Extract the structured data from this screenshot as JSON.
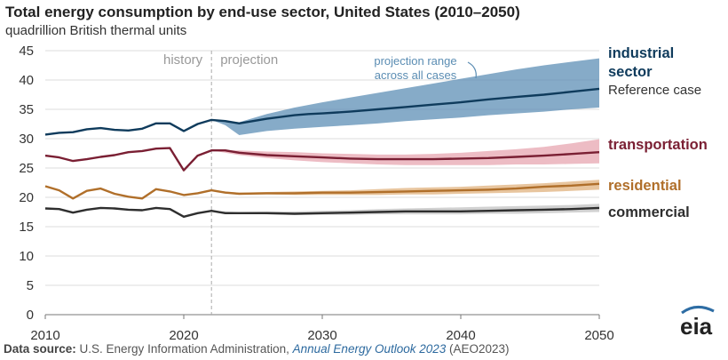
{
  "chart_data": {
    "type": "line",
    "title": "Total energy consumption by end-use sector, United States (2010–2050)",
    "subtitle": "quadrillion British thermal units",
    "xlabel": "",
    "ylabel": "quadrillion British thermal units",
    "xlim": [
      2010,
      2050
    ],
    "ylim": [
      0,
      45
    ],
    "x_ticks": [
      "2010",
      "2020",
      "2030",
      "2040",
      "2050"
    ],
    "y_ticks": [
      "0",
      "5",
      "10",
      "15",
      "20",
      "25",
      "30",
      "35",
      "40",
      "45"
    ],
    "divider_year": 2022,
    "history_label": "history",
    "projection_label": "projection",
    "range_annotation": [
      "projection range",
      "across all cases"
    ],
    "series": [
      {
        "name": "industrial sector",
        "label_lines": [
          "industrial",
          "sector"
        ],
        "sublabel": "Reference case",
        "color": "#0f3b5c",
        "band_color": "#5d8fb5",
        "points": [
          [
            2010,
            30.7
          ],
          [
            2011,
            31.0
          ],
          [
            2012,
            31.1
          ],
          [
            2013,
            31.6
          ],
          [
            2014,
            31.8
          ],
          [
            2015,
            31.5
          ],
          [
            2016,
            31.4
          ],
          [
            2017,
            31.7
          ],
          [
            2018,
            32.6
          ],
          [
            2019,
            32.6
          ],
          [
            2020,
            31.3
          ],
          [
            2021,
            32.5
          ],
          [
            2022,
            33.2
          ],
          [
            2023,
            33.0
          ],
          [
            2024,
            32.6
          ],
          [
            2025,
            33.0
          ],
          [
            2026,
            33.4
          ],
          [
            2027,
            33.7
          ],
          [
            2028,
            34.0
          ],
          [
            2029,
            34.2
          ],
          [
            2030,
            34.3
          ],
          [
            2032,
            34.6
          ],
          [
            2034,
            35.0
          ],
          [
            2036,
            35.4
          ],
          [
            2038,
            35.8
          ],
          [
            2040,
            36.2
          ],
          [
            2042,
            36.7
          ],
          [
            2044,
            37.1
          ],
          [
            2046,
            37.5
          ],
          [
            2048,
            38.0
          ],
          [
            2050,
            38.5
          ]
        ],
        "range_upper": [
          [
            2022,
            33.2
          ],
          [
            2023,
            33.0
          ],
          [
            2024,
            32.8
          ],
          [
            2026,
            34.2
          ],
          [
            2028,
            35.3
          ],
          [
            2030,
            36.2
          ],
          [
            2032,
            37.0
          ],
          [
            2034,
            37.8
          ],
          [
            2036,
            38.6
          ],
          [
            2038,
            39.4
          ],
          [
            2040,
            40.2
          ],
          [
            2042,
            41.0
          ],
          [
            2044,
            41.8
          ],
          [
            2046,
            42.5
          ],
          [
            2048,
            43.1
          ],
          [
            2050,
            43.7
          ]
        ],
        "range_lower": [
          [
            2022,
            33.2
          ],
          [
            2023,
            32.3
          ],
          [
            2024,
            30.6
          ],
          [
            2026,
            31.3
          ],
          [
            2028,
            31.7
          ],
          [
            2030,
            32.0
          ],
          [
            2032,
            32.3
          ],
          [
            2034,
            32.6
          ],
          [
            2036,
            33.0
          ],
          [
            2038,
            33.3
          ],
          [
            2040,
            33.6
          ],
          [
            2042,
            34.0
          ],
          [
            2044,
            34.3
          ],
          [
            2046,
            34.6
          ],
          [
            2048,
            35.0
          ],
          [
            2050,
            35.3
          ]
        ]
      },
      {
        "name": "transportation",
        "label_lines": [
          "transportation"
        ],
        "sublabel": "",
        "color": "#7a1f33",
        "band_color": "#e7a6b0",
        "points": [
          [
            2010,
            27.1
          ],
          [
            2011,
            26.8
          ],
          [
            2012,
            26.2
          ],
          [
            2013,
            26.5
          ],
          [
            2014,
            26.9
          ],
          [
            2015,
            27.2
          ],
          [
            2016,
            27.7
          ],
          [
            2017,
            27.9
          ],
          [
            2018,
            28.3
          ],
          [
            2019,
            28.4
          ],
          [
            2020,
            24.6
          ],
          [
            2021,
            27.1
          ],
          [
            2022,
            28.0
          ],
          [
            2023,
            28.0
          ],
          [
            2024,
            27.6
          ],
          [
            2026,
            27.2
          ],
          [
            2028,
            27.0
          ],
          [
            2030,
            26.8
          ],
          [
            2032,
            26.6
          ],
          [
            2034,
            26.5
          ],
          [
            2036,
            26.5
          ],
          [
            2038,
            26.5
          ],
          [
            2040,
            26.6
          ],
          [
            2042,
            26.7
          ],
          [
            2044,
            26.9
          ],
          [
            2046,
            27.1
          ],
          [
            2048,
            27.4
          ],
          [
            2050,
            27.7
          ]
        ],
        "range_upper": [
          [
            2022,
            28.0
          ],
          [
            2024,
            28.0
          ],
          [
            2026,
            27.8
          ],
          [
            2028,
            27.7
          ],
          [
            2030,
            27.5
          ],
          [
            2032,
            27.4
          ],
          [
            2034,
            27.3
          ],
          [
            2036,
            27.3
          ],
          [
            2038,
            27.4
          ],
          [
            2040,
            27.6
          ],
          [
            2042,
            27.9
          ],
          [
            2044,
            28.2
          ],
          [
            2046,
            28.6
          ],
          [
            2048,
            29.2
          ],
          [
            2050,
            29.9
          ]
        ],
        "range_lower": [
          [
            2022,
            28.0
          ],
          [
            2024,
            27.2
          ],
          [
            2026,
            26.7
          ],
          [
            2028,
            26.3
          ],
          [
            2030,
            26.0
          ],
          [
            2032,
            25.8
          ],
          [
            2034,
            25.6
          ],
          [
            2036,
            25.5
          ],
          [
            2038,
            25.5
          ],
          [
            2040,
            25.5
          ],
          [
            2042,
            25.5
          ],
          [
            2044,
            25.6
          ],
          [
            2046,
            25.6
          ],
          [
            2048,
            25.7
          ],
          [
            2050,
            25.8
          ]
        ]
      },
      {
        "name": "residential",
        "label_lines": [
          "residential"
        ],
        "sublabel": "",
        "color": "#b06f2a",
        "band_color": "#e0b27e",
        "points": [
          [
            2010,
            21.9
          ],
          [
            2011,
            21.2
          ],
          [
            2012,
            19.8
          ],
          [
            2013,
            21.1
          ],
          [
            2014,
            21.5
          ],
          [
            2015,
            20.6
          ],
          [
            2016,
            20.1
          ],
          [
            2017,
            19.8
          ],
          [
            2018,
            21.4
          ],
          [
            2019,
            21.0
          ],
          [
            2020,
            20.4
          ],
          [
            2021,
            20.7
          ],
          [
            2022,
            21.2
          ],
          [
            2023,
            20.8
          ],
          [
            2024,
            20.6
          ],
          [
            2026,
            20.7
          ],
          [
            2028,
            20.7
          ],
          [
            2030,
            20.8
          ],
          [
            2032,
            20.8
          ],
          [
            2034,
            20.9
          ],
          [
            2036,
            21.0
          ],
          [
            2038,
            21.1
          ],
          [
            2040,
            21.2
          ],
          [
            2042,
            21.3
          ],
          [
            2044,
            21.5
          ],
          [
            2046,
            21.8
          ],
          [
            2048,
            22.0
          ],
          [
            2050,
            22.3
          ]
        ],
        "range_upper": [
          [
            2022,
            21.2
          ],
          [
            2024,
            20.8
          ],
          [
            2026,
            20.9
          ],
          [
            2028,
            21.0
          ],
          [
            2030,
            21.1
          ],
          [
            2032,
            21.2
          ],
          [
            2034,
            21.4
          ],
          [
            2036,
            21.6
          ],
          [
            2038,
            21.7
          ],
          [
            2040,
            21.8
          ],
          [
            2042,
            22.0
          ],
          [
            2044,
            22.2
          ],
          [
            2046,
            22.4
          ],
          [
            2048,
            22.7
          ],
          [
            2050,
            23.0
          ]
        ],
        "range_lower": [
          [
            2022,
            21.2
          ],
          [
            2024,
            20.5
          ],
          [
            2026,
            20.5
          ],
          [
            2028,
            20.4
          ],
          [
            2030,
            20.4
          ],
          [
            2032,
            20.4
          ],
          [
            2034,
            20.4
          ],
          [
            2036,
            20.5
          ],
          [
            2038,
            20.5
          ],
          [
            2040,
            20.6
          ],
          [
            2042,
            20.7
          ],
          [
            2044,
            20.8
          ],
          [
            2046,
            20.9
          ],
          [
            2048,
            21.1
          ],
          [
            2050,
            21.3
          ]
        ]
      },
      {
        "name": "commercial",
        "label_lines": [
          "commercial"
        ],
        "sublabel": "",
        "color": "#2e2e2e",
        "band_color": "#c2c2c2",
        "points": [
          [
            2010,
            18.1
          ],
          [
            2011,
            18.0
          ],
          [
            2012,
            17.4
          ],
          [
            2013,
            17.9
          ],
          [
            2014,
            18.2
          ],
          [
            2015,
            18.1
          ],
          [
            2016,
            17.9
          ],
          [
            2017,
            17.8
          ],
          [
            2018,
            18.2
          ],
          [
            2019,
            18.0
          ],
          [
            2020,
            16.7
          ],
          [
            2021,
            17.3
          ],
          [
            2022,
            17.7
          ],
          [
            2023,
            17.3
          ],
          [
            2024,
            17.3
          ],
          [
            2026,
            17.3
          ],
          [
            2028,
            17.2
          ],
          [
            2030,
            17.3
          ],
          [
            2032,
            17.4
          ],
          [
            2034,
            17.5
          ],
          [
            2036,
            17.6
          ],
          [
            2038,
            17.6
          ],
          [
            2040,
            17.6
          ],
          [
            2042,
            17.7
          ],
          [
            2044,
            17.8
          ],
          [
            2046,
            17.9
          ],
          [
            2048,
            18.0
          ],
          [
            2050,
            18.2
          ]
        ],
        "range_upper": [
          [
            2022,
            17.7
          ],
          [
            2024,
            17.5
          ],
          [
            2026,
            17.6
          ],
          [
            2028,
            17.6
          ],
          [
            2030,
            17.7
          ],
          [
            2032,
            17.8
          ],
          [
            2034,
            18.0
          ],
          [
            2036,
            18.1
          ],
          [
            2038,
            18.2
          ],
          [
            2040,
            18.3
          ],
          [
            2042,
            18.4
          ],
          [
            2044,
            18.5
          ],
          [
            2046,
            18.6
          ],
          [
            2048,
            18.7
          ],
          [
            2050,
            18.9
          ]
        ],
        "range_lower": [
          [
            2022,
            17.7
          ],
          [
            2024,
            17.2
          ],
          [
            2026,
            17.1
          ],
          [
            2028,
            17.0
          ],
          [
            2030,
            17.0
          ],
          [
            2032,
            17.0
          ],
          [
            2034,
            17.1
          ],
          [
            2036,
            17.1
          ],
          [
            2038,
            17.1
          ],
          [
            2040,
            17.1
          ],
          [
            2042,
            17.2
          ],
          [
            2044,
            17.2
          ],
          [
            2046,
            17.3
          ],
          [
            2048,
            17.4
          ],
          [
            2050,
            17.5
          ]
        ]
      }
    ]
  },
  "source": {
    "label": "Data source:",
    "text_before": " U.S. Energy Information Administration, ",
    "report": "Annual Energy Outlook 2023",
    "text_after": " (AEO2023)"
  },
  "logo": {
    "text": "eia",
    "color": "#2e6da4"
  }
}
